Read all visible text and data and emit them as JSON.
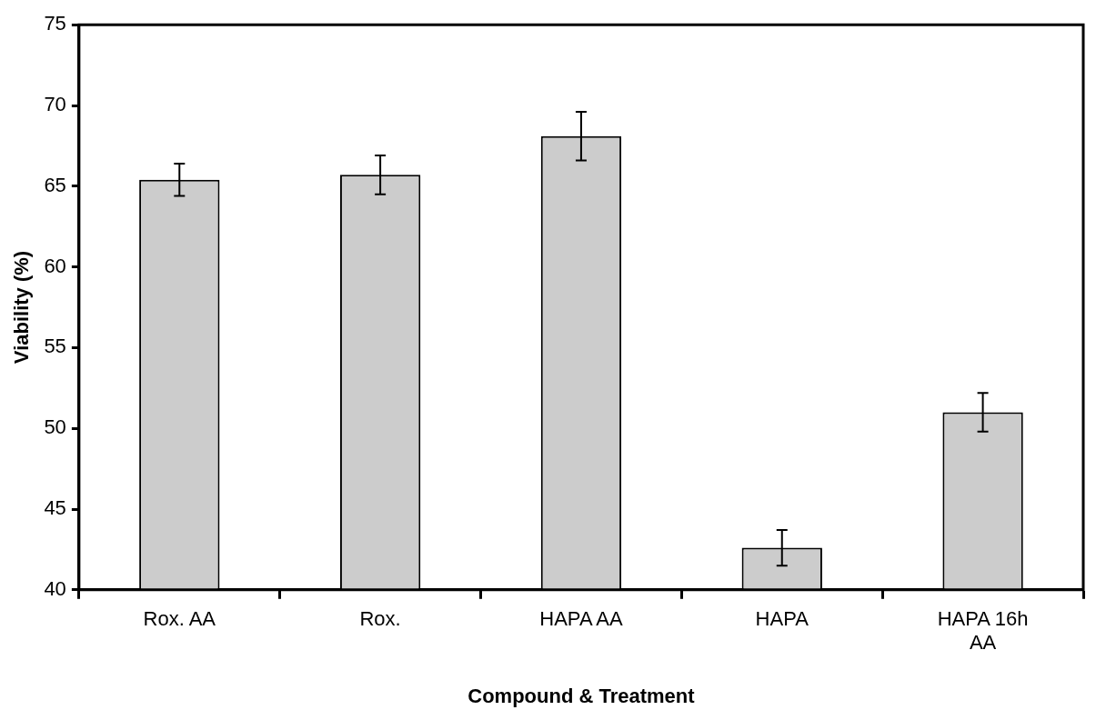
{
  "chart_data": {
    "type": "bar",
    "xlabel": "Compound & Treatment",
    "ylabel": "Viability (%)",
    "categories": [
      "Rox. AA",
      "Rox.",
      "HAPA AA",
      "HAPA",
      "HAPA 16h AA"
    ],
    "values": [
      65.4,
      65.7,
      68.1,
      42.6,
      51.0
    ],
    "errors": [
      1.0,
      1.2,
      1.5,
      1.1,
      1.2
    ],
    "color": "#cccccc",
    "ylim": [
      40,
      75
    ],
    "yticks": [
      40,
      45,
      50,
      55,
      60,
      65,
      70,
      75
    ],
    "grid": false,
    "legend": false
  }
}
